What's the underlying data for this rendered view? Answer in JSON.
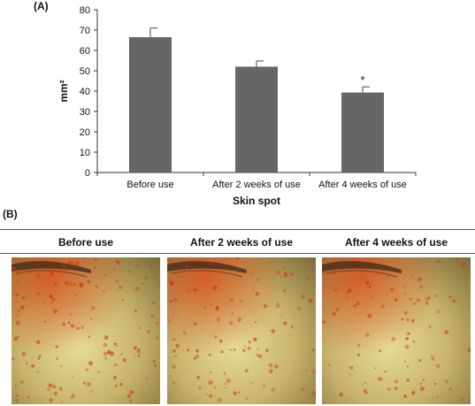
{
  "panel_a_label": "(A)",
  "panel_b_label": "(B)",
  "chart_data": {
    "type": "bar",
    "categories": [
      "Before use",
      "After 2 weeks of use",
      "After 4 weeks of use"
    ],
    "values": [
      66.5,
      52,
      39.3
    ],
    "errors": [
      4.5,
      2.8,
      2.8
    ],
    "annotations": [
      "",
      "",
      "*"
    ],
    "xlabel": "Skin spot",
    "ylabel": "mm²",
    "ylim": [
      0,
      80
    ],
    "yticks": [
      0,
      10,
      20,
      30,
      40,
      50,
      60,
      70,
      80
    ],
    "bar_color": "#666666",
    "grid": false
  },
  "panel_b": {
    "columns": [
      "Before use",
      "After 2 weeks of use",
      "After 4 weeks of use"
    ]
  },
  "colors": {
    "skin_base": "#c9b56c",
    "spot": "#cc3a16"
  }
}
